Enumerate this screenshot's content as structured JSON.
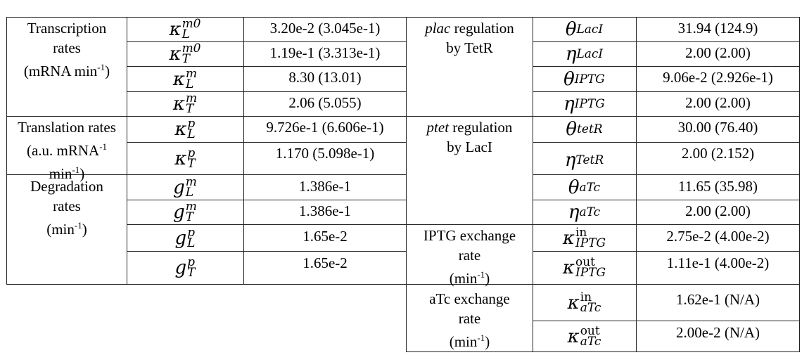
{
  "left_groups": [
    {
      "label_lines": [
        "Transcription",
        "rates",
        "(mRNA min",
        ")"
      ],
      "label_sup": "-1",
      "rows": [
        {
          "base": "κ",
          "sup": "m0",
          "sub": "L",
          "value": "3.20e-2 (3.045e-1)"
        },
        {
          "base": "κ",
          "sup": "m0",
          "sub": "T",
          "value": "1.19e-1 (3.313e-1)"
        },
        {
          "base": "κ",
          "sup": "m",
          "sub": "L",
          "value": "8.30 (13.01)"
        },
        {
          "base": "κ",
          "sup": "m",
          "sub": "T",
          "value": "2.06 (5.055)"
        }
      ]
    },
    {
      "label_lines": [
        "Translation rates",
        "(a.u. mRNA",
        "min",
        ")"
      ],
      "label_sup": "-1",
      "rows": [
        {
          "base": "κ",
          "sup": "p",
          "sub": "L",
          "value": "9.726e-1 (6.606e-1)"
        },
        {
          "base": "κ",
          "sup": "p",
          "sub": "T",
          "value": "1.170 (5.098e-1)"
        }
      ]
    },
    {
      "label_lines": [
        "Degradation",
        "rates",
        "(min",
        ")"
      ],
      "label_sup": "-1",
      "rows": [
        {
          "base": "g",
          "sup": "m",
          "sub": "L",
          "value": "1.386e-1"
        },
        {
          "base": "g",
          "sup": "m",
          "sub": "T",
          "value": "1.386e-1"
        },
        {
          "base": "g",
          "sup": "p",
          "sub": "L",
          "value": "1.65e-2"
        },
        {
          "base": "g",
          "sup": "p",
          "sub": "T",
          "value": "1.65e-2"
        }
      ]
    }
  ],
  "right_groups": [
    {
      "label_italic": "plac",
      "label_rest": " regulation",
      "label_line2": "by TetR",
      "rows": [
        {
          "base": "θ",
          "sub": "LacI",
          "value": "31.94 (124.9)"
        },
        {
          "base": "η",
          "sub": "LacI",
          "value": "2.00 (2.00)"
        },
        {
          "base": "θ",
          "sub": "IPTG",
          "value": "9.06e-2 (2.926e-1)"
        },
        {
          "base": "η",
          "sub": "IPTG",
          "value": "2.00 (2.00)"
        }
      ]
    },
    {
      "label_italic": "ptet",
      "label_rest": " regulation",
      "label_line2": "by LacI",
      "rows": [
        {
          "base": "θ",
          "sub": "tetR",
          "value": "30.00 (76.40)"
        },
        {
          "base": "η",
          "sub": "TetR",
          "value": "2.00 (2.152)"
        },
        {
          "base": "θ",
          "sub": "aTc",
          "value": "11.65 (35.98)"
        },
        {
          "base": "η",
          "sub": "aTc",
          "value": "2.00 (2.00)"
        }
      ]
    },
    {
      "label_lines": [
        "IPTG exchange",
        "rate",
        "(min",
        ")"
      ],
      "label_sup": "-1",
      "rows": [
        {
          "base": "κ",
          "sup": "in",
          "sub": "IPTG",
          "value": "2.75e-2 (4.00e-2)"
        },
        {
          "base": "κ",
          "sup": "out",
          "sub": "IPTG",
          "value": "1.11e-1 (4.00e-2)"
        }
      ]
    },
    {
      "label_lines": [
        "aTc exchange",
        "rate",
        "(min",
        ")"
      ],
      "label_sup": "-1",
      "rows": [
        {
          "base": "κ",
          "sup": "in",
          "sub": "aTc",
          "value": "1.62e-1 (N/A)"
        },
        {
          "base": "κ",
          "sup": "out",
          "sub": "aTc",
          "value": "2.00e-2 (N/A)"
        }
      ]
    }
  ]
}
